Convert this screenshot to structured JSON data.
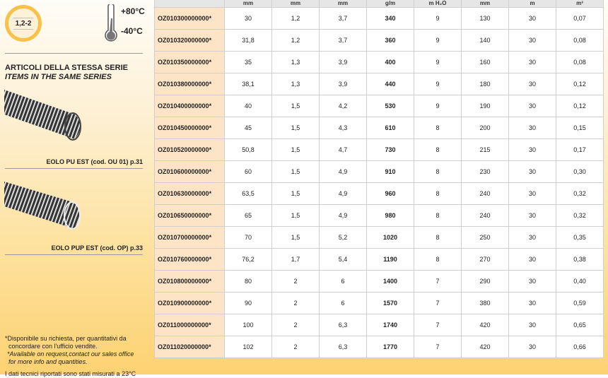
{
  "badge": "1,2-2",
  "temperature": {
    "max": "+80°C",
    "min": "-40°C"
  },
  "series": {
    "title_it": "ARTICOLI DELLA STESSA SERIE",
    "title_en": "ITEMS IN THE SAME SERIES",
    "items": [
      {
        "label": "EOLO PU EST (cod. OU 01) p.31"
      },
      {
        "label": "EOLO PUP EST (cod. OP) p.33"
      }
    ]
  },
  "notes": {
    "it1": "*Disponibile su richiesta, per quantitativi da",
    "it2": "concordare con l'ufficio vendite.",
    "en1": "*Available on request,contact our sales office",
    "en2": "for more info and quantities.",
    "cut": "I dati tecnici riportati sono stati misurati a 23°C"
  },
  "table": {
    "units": [
      "",
      "mm",
      "mm",
      "mm",
      "g/m",
      "m H₂O",
      "mm",
      "m",
      "m³"
    ],
    "rows": [
      [
        "OZ010300000000*",
        "30",
        "1,2",
        "3,7",
        "340",
        "9",
        "130",
        "30",
        "0,07"
      ],
      [
        "OZ010320000000*",
        "31,8",
        "1,2",
        "3,7",
        "360",
        "9",
        "140",
        "30",
        "0,08"
      ],
      [
        "OZ010350000000*",
        "35",
        "1,3",
        "3,9",
        "400",
        "9",
        "160",
        "30",
        "0,08"
      ],
      [
        "OZ010380000000*",
        "38,1",
        "1,3",
        "3,9",
        "440",
        "9",
        "180",
        "30",
        "0,12"
      ],
      [
        "OZ010400000000*",
        "40",
        "1,5",
        "4,2",
        "530",
        "9",
        "190",
        "30",
        "0,12"
      ],
      [
        "OZ010450000000*",
        "45",
        "1,5",
        "4,3",
        "610",
        "8",
        "200",
        "30",
        "0,15"
      ],
      [
        "OZ010520000000*",
        "50,8",
        "1,5",
        "4,7",
        "730",
        "8",
        "215",
        "30",
        "0,17"
      ],
      [
        "OZ010600000000*",
        "60",
        "1,5",
        "4,9",
        "910",
        "8",
        "230",
        "30",
        "0,30"
      ],
      [
        "OZ010630000000*",
        "63,5",
        "1,5",
        "4,9",
        "960",
        "8",
        "240",
        "30",
        "0,32"
      ],
      [
        "OZ010650000000*",
        "65",
        "1,5",
        "4,9",
        "980",
        "8",
        "240",
        "30",
        "0,32"
      ],
      [
        "OZ010700000000*",
        "70",
        "1,5",
        "5,2",
        "1020",
        "8",
        "250",
        "30",
        "0,35"
      ],
      [
        "OZ010760000000*",
        "76,2",
        "1,7",
        "5,4",
        "1190",
        "8",
        "270",
        "30",
        "0,38"
      ],
      [
        "OZ010800000000*",
        "80",
        "2",
        "6",
        "1400",
        "7",
        "290",
        "30",
        "0,40"
      ],
      [
        "OZ010900000000*",
        "90",
        "2",
        "6",
        "1570",
        "7",
        "380",
        "30",
        "0,59"
      ],
      [
        "OZ011000000000*",
        "100",
        "2",
        "6,3",
        "1740",
        "7",
        "420",
        "30",
        "0,65"
      ],
      [
        "OZ011020000000*",
        "102",
        "2",
        "6,3",
        "1770",
        "7",
        "420",
        "30",
        "0,66"
      ]
    ]
  }
}
